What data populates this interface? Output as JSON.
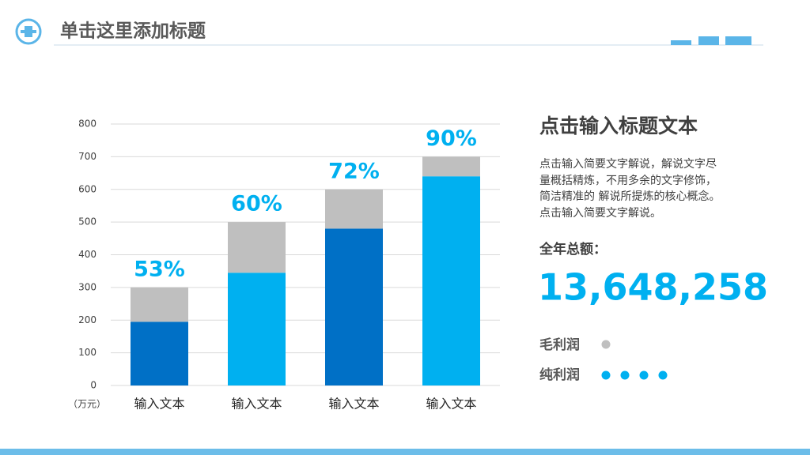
{
  "header": {
    "title": "单击这里添加标题"
  },
  "chart_data": {
    "type": "stacked_bar",
    "categories": [
      "输入文本",
      "输入文本",
      "输入文本",
      "输入文本"
    ],
    "series": [
      {
        "colors": [
          "#0070c6",
          "#00b0f0",
          "#0070c6",
          "#00b0f0"
        ],
        "values": [
          195,
          345,
          480,
          640
        ]
      },
      {
        "color": "#bfbfbf",
        "values": [
          105,
          155,
          120,
          60
        ]
      }
    ],
    "annotations": [
      "53%",
      "60%",
      "72%",
      "90%"
    ],
    "annotation_color": "#00b0f0",
    "y_unit": "（万元）",
    "ylim": [
      0,
      800
    ],
    "yticks": [
      0,
      100,
      200,
      300,
      400,
      500,
      600,
      700,
      800
    ],
    "grid": true
  },
  "panel": {
    "title": "点击输入标题文本",
    "body": [
      "点击输入简要文字解说，解说文字尽",
      "量概括精炼，不用多余的文字修饰，",
      "简洁精准的 解说所提炼的核心概念。",
      "点击输入简要文字解说。"
    ],
    "total_label": "全年总额：",
    "total": "13,648,258",
    "legend": [
      "毛利润",
      "纯利润"
    ]
  }
}
